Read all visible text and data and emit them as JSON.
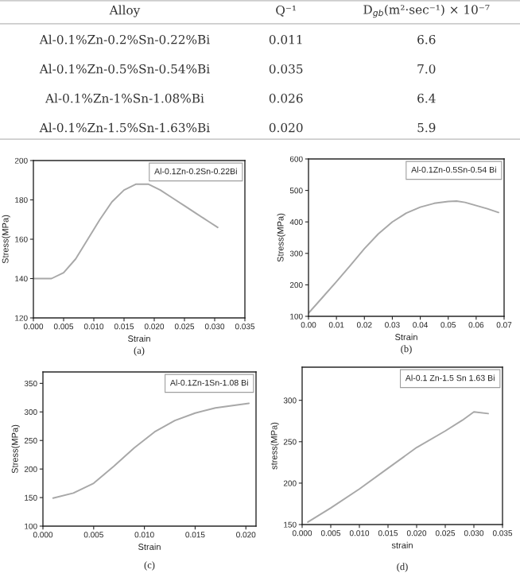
{
  "chart_data": [
    {
      "type": "other",
      "annotations": [
        "Alloy",
        "Q⁻¹",
        "D$_{gb}$(m²·sec⁻¹) × 10⁻⁷",
        "Al-0.1%Zn-0.2%Sn-0.22%Bi",
        "0.011",
        "6.6",
        "Al-0.1%Zn-0.5%Sn-0.54%Bi",
        "0.035",
        "7.0",
        "Al-0.1%Zn-1%Sn-1.08%Bi",
        "0.026",
        "6.4",
        "Al-0.1%Zn-1.5%Sn-1.63%Bi",
        "0.020",
        "5.9"
      ]
    },
    {
      "type": "line",
      "xlabel": "Strain",
      "ylabel": "Stress(MPa)",
      "annotations": [
        "(a)"
      ],
      "legend": "top right",
      "xlim": [
        0,
        0.035
      ],
      "ylim": [
        120,
        200
      ],
      "xticks": [
        {
          "value": 0,
          "label": "0.000"
        },
        0.005,
        {
          "value": 0.01,
          "label": "0.010"
        },
        0.015,
        {
          "value": 0.02,
          "label": "0.020"
        },
        0.025,
        {
          "value": 0.03,
          "label": "0.030"
        },
        0.035
      ],
      "yticks": [
        120,
        140,
        160,
        180,
        200
      ],
      "series": [
        {
          "name": "Al-0.1Zn-0.2Sn-0.22Bi",
          "color": "#a8a8a8",
          "x": [
            0,
            0.003,
            0.005,
            0.007,
            0.009,
            0.011,
            0.013,
            0.015,
            0.017,
            0.019,
            0.021,
            0.023,
            0.025,
            0.027,
            0.029,
            0.0305
          ],
          "values": [
            140,
            140,
            143,
            150,
            160,
            170,
            179,
            185,
            188,
            188,
            185,
            181,
            177,
            173,
            169,
            166
          ]
        }
      ]
    },
    {
      "type": "line",
      "xlabel": "Strain",
      "ylabel": "Stress(MPa)",
      "annotations": [
        "(b)"
      ],
      "legend": "top right",
      "xlim": [
        0,
        0.07
      ],
      "ylim": [
        100,
        600
      ],
      "xticks": [
        {
          "value": 0,
          "label": "0.00"
        },
        0.01,
        0.02,
        0.03,
        0.04,
        0.05,
        0.06,
        0.07
      ],
      "yticks": [
        100,
        200,
        300,
        400,
        500,
        600
      ],
      "series": [
        {
          "name": "Al-0.1Zn-0.5Sn-0.54 Bi",
          "color": "#a8a8a8",
          "x": [
            0,
            0.005,
            0.01,
            0.015,
            0.02,
            0.025,
            0.03,
            0.035,
            0.04,
            0.045,
            0.05,
            0.053,
            0.056,
            0.06,
            0.064,
            0.068
          ],
          "values": [
            110,
            160,
            210,
            262,
            315,
            362,
            400,
            428,
            447,
            459,
            465,
            466,
            462,
            452,
            442,
            430
          ]
        }
      ]
    },
    {
      "type": "line",
      "xlabel": "Strain",
      "ylabel": "Stress(MPa)",
      "annotations": [
        "(c)"
      ],
      "legend": "top right",
      "xlim": [
        0,
        0.021
      ],
      "ylim": [
        100,
        370
      ],
      "xticks": [
        {
          "value": 0,
          "label": "0.000"
        },
        0.005,
        {
          "value": 0.01,
          "label": "0.010"
        },
        0.015,
        {
          "value": 0.02,
          "label": "0.020"
        }
      ],
      "yticks": [
        100,
        150,
        200,
        250,
        300,
        350
      ],
      "series": [
        {
          "name": "Al-0.1Zn-1Sn-1.08 Bi",
          "color": "#a8a8a8",
          "x": [
            0.001,
            0.003,
            0.005,
            0.007,
            0.009,
            0.011,
            0.013,
            0.015,
            0.017,
            0.019,
            0.0203
          ],
          "values": [
            149,
            158,
            175,
            205,
            237,
            265,
            285,
            298,
            307,
            312,
            315
          ]
        }
      ]
    },
    {
      "type": "line",
      "xlabel": "strain",
      "ylabel": "stress(MPa)",
      "annotations": [
        "(d)"
      ],
      "legend": "top right",
      "xlim": [
        0,
        0.035
      ],
      "ylim": [
        150,
        340
      ],
      "xticks": [
        {
          "value": 0,
          "label": "0.000"
        },
        0.005,
        {
          "value": 0.01,
          "label": "0.010"
        },
        0.015,
        {
          "value": 0.02,
          "label": "0.020"
        },
        0.025,
        {
          "value": 0.03,
          "label": "0.030"
        },
        0.035
      ],
      "yticks": [
        150,
        200,
        250,
        300
      ],
      "series": [
        {
          "name": "Al-0.1 Zn-1.5 Sn 1.63 Bi",
          "color": "#a8a8a8",
          "x": [
            0.001,
            0.005,
            0.01,
            0.015,
            0.02,
            0.025,
            0.028,
            0.03,
            0.0325
          ],
          "values": [
            153,
            170,
            193,
            218,
            243,
            263,
            276,
            286,
            284
          ]
        }
      ]
    }
  ]
}
